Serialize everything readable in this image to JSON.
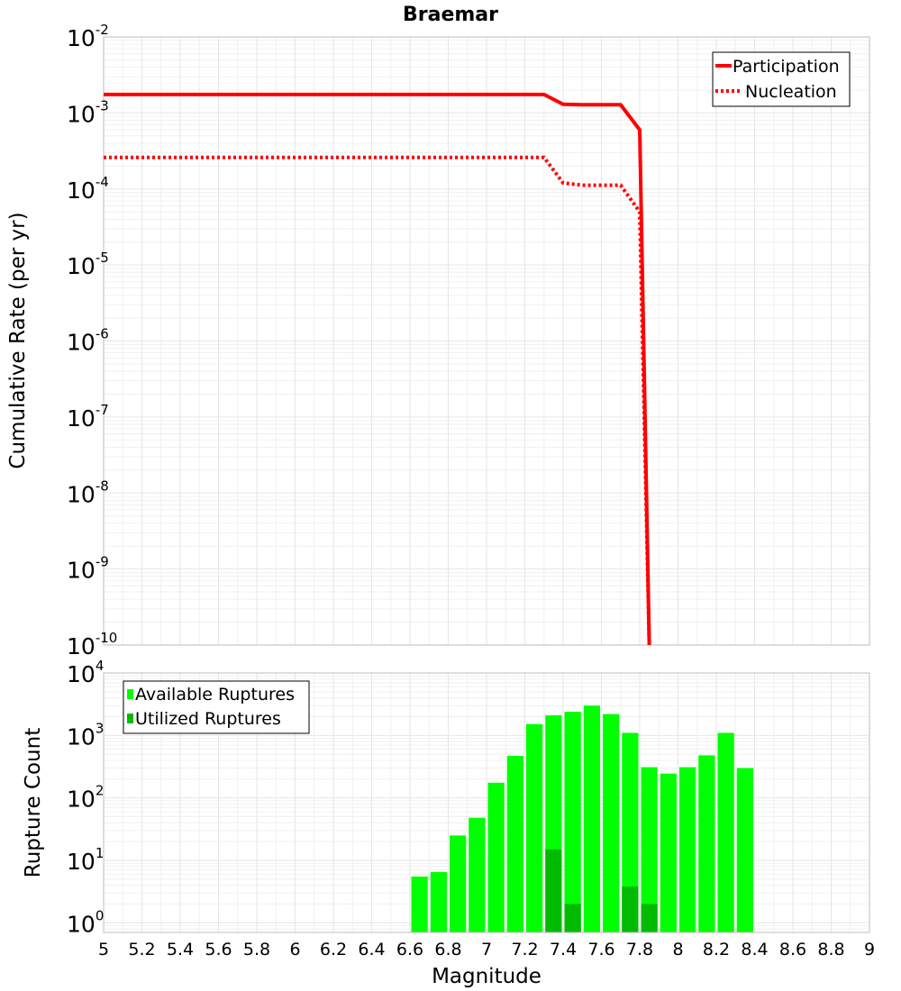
{
  "chart_data": [
    {
      "type": "line",
      "title": "Braemar",
      "ylabel": "Cumulative Rate (per yr)",
      "xlim": [
        5,
        9
      ],
      "ylim": [
        1e-10,
        0.01
      ],
      "yscale": "log",
      "grid": true,
      "legend_position": "top-right",
      "y_ticks": [
        {
          "base": "10",
          "exp": "-2"
        },
        {
          "base": "10",
          "exp": "-3"
        },
        {
          "base": "10",
          "exp": "-4"
        },
        {
          "base": "10",
          "exp": "-5"
        },
        {
          "base": "10",
          "exp": "-6"
        },
        {
          "base": "10",
          "exp": "-7"
        },
        {
          "base": "10",
          "exp": "-8"
        },
        {
          "base": "10",
          "exp": "-9"
        },
        {
          "base": "10",
          "exp": "-10"
        }
      ],
      "series": [
        {
          "name": "Participation",
          "color": "#ff0000",
          "style": "solid",
          "x": [
            5.0,
            7.3,
            7.4,
            7.5,
            7.6,
            7.7,
            7.8,
            7.85
          ],
          "y": [
            0.00175,
            0.00175,
            0.0013,
            0.00128,
            0.00128,
            0.00128,
            0.0006,
            1e-10
          ]
        },
        {
          "name": "Nucleation",
          "color": "#ff0000",
          "style": "dotted",
          "x": [
            5.0,
            7.3,
            7.4,
            7.5,
            7.6,
            7.7,
            7.8,
            7.85
          ],
          "y": [
            0.00026,
            0.00026,
            0.00012,
            0.000112,
            0.000112,
            0.000112,
            5e-05,
            1e-10
          ]
        }
      ]
    },
    {
      "type": "bar",
      "xlabel": "Magnitude",
      "ylabel": "Rupture Count",
      "xlim": [
        5,
        9
      ],
      "ylim": [
        0.7,
        10000
      ],
      "yscale": "log",
      "grid": true,
      "legend_position": "top-left",
      "x_ticks": [
        "5",
        "5.2",
        "5.4",
        "5.6",
        "5.8",
        "6",
        "6.2",
        "6.4",
        "6.6",
        "6.8",
        "7",
        "7.2",
        "7.4",
        "7.6",
        "7.8",
        "8",
        "8.2",
        "8.4",
        "8.6",
        "8.8",
        "9"
      ],
      "y_ticks": [
        {
          "base": "10",
          "exp": "4"
        },
        {
          "base": "10",
          "exp": "3"
        },
        {
          "base": "10",
          "exp": "2"
        },
        {
          "base": "10",
          "exp": "1"
        },
        {
          "base": "10",
          "exp": "0"
        }
      ],
      "bin_width": 0.1,
      "series": [
        {
          "name": "Available Ruptures",
          "color": "#00ff00",
          "x": [
            6.65,
            6.75,
            6.85,
            6.95,
            7.05,
            7.15,
            7.25,
            7.35,
            7.45,
            7.55,
            7.65,
            7.75,
            7.85,
            7.95,
            8.05,
            8.15,
            8.25,
            8.35
          ],
          "values": [
            5.5,
            6.5,
            25,
            48,
            175,
            470,
            1520,
            2100,
            2400,
            3000,
            2200,
            1100,
            310,
            245,
            310,
            480,
            1100,
            300
          ]
        },
        {
          "name": "Utilized Ruptures",
          "color": "#00bb00",
          "x": [
            7.35,
            7.45,
            7.75,
            7.85
          ],
          "values": [
            15,
            2,
            3.8,
            2
          ]
        }
      ]
    }
  ]
}
